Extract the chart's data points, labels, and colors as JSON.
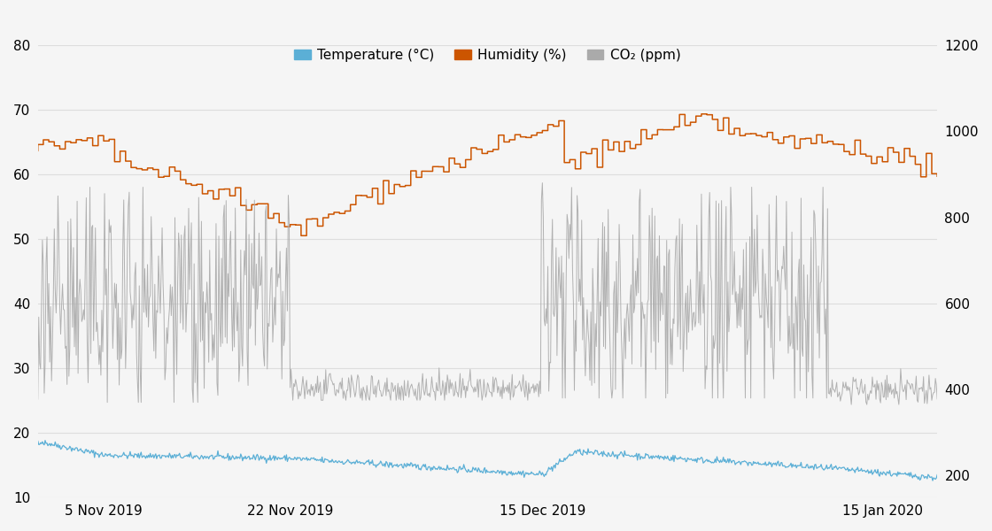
{
  "ylim_left": [
    10,
    80
  ],
  "ylim_right": [
    150,
    1200
  ],
  "left_ticks": [
    10,
    20,
    30,
    40,
    50,
    60,
    70,
    80
  ],
  "right_ticks": [
    200,
    400,
    600,
    800,
    1000,
    1200
  ],
  "xtick_labels": [
    "5 Nov 2019",
    "22 Nov 2019",
    "15 Dec 2019",
    "15 Jan 2020"
  ],
  "temp_color": "#5bafd6",
  "humidity_color": "#cc5500",
  "co2_color": "#aaaaaa",
  "background_color": "#f5f5f5",
  "grid_color": "#dddddd",
  "legend_labels": [
    "Temperature (°C)",
    "Humidity (%)",
    "CO₂ (ppm)"
  ],
  "legend_colors": [
    "#5bafd6",
    "#cc5500",
    "#aaaaaa"
  ],
  "font_size": 11,
  "tick_font_size": 11
}
